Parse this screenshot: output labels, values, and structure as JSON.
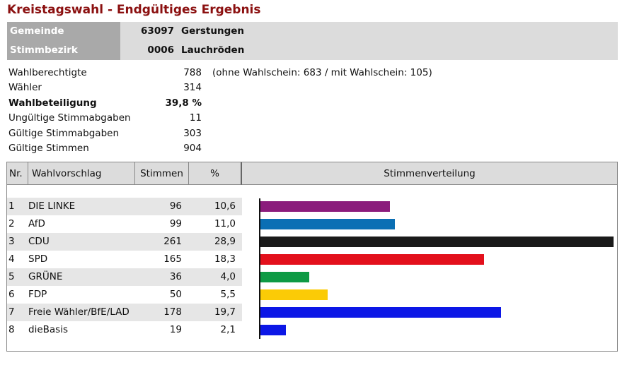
{
  "title": "Kreistagswahl - Endgültiges Ergebnis",
  "header": {
    "gemeinde_label": "Gemeinde",
    "gemeinde_code": "63097",
    "gemeinde_name": "Gerstungen",
    "bezirk_label": "Stimmbezirk",
    "bezirk_code": "0006",
    "bezirk_name": "Lauchröden"
  },
  "stats": [
    {
      "label": "Wahlberechtigte",
      "value": "788",
      "note": "(ohne Wahlschein: 683 / mit Wahlschein: 105)"
    },
    {
      "label": "Wähler",
      "value": "314",
      "note": ""
    },
    {
      "label": "Wahlbeteiligung",
      "value": "39,8 %",
      "note": ""
    },
    {
      "label": "Ungültige Stimmabgaben",
      "value": "11",
      "note": ""
    },
    {
      "label": "Gültige Stimmabgaben",
      "value": "303",
      "note": ""
    },
    {
      "label": "Gültige Stimmen",
      "value": "904",
      "note": ""
    }
  ],
  "table": {
    "headers": {
      "nr": "Nr.",
      "wahlvorschlag": "Wahlvorschlag",
      "stimmen": "Stimmen",
      "pct": "%",
      "verteilung": "Stimmenverteilung"
    },
    "rows": [
      {
        "nr": "1",
        "name": "DIE LINKE",
        "stimmen": "96",
        "pct": "10,6",
        "share": 10.6,
        "color": "#8b1c7c"
      },
      {
        "nr": "2",
        "name": "AfD",
        "stimmen": "99",
        "pct": "11,0",
        "share": 11.0,
        "color": "#0b6fb4"
      },
      {
        "nr": "3",
        "name": "CDU",
        "stimmen": "261",
        "pct": "28,9",
        "share": 28.9,
        "color": "#1a1a1a"
      },
      {
        "nr": "4",
        "name": "SPD",
        "stimmen": "165",
        "pct": "18,3",
        "share": 18.3,
        "color": "#e3101c"
      },
      {
        "nr": "5",
        "name": "GRÜNE",
        "stimmen": "36",
        "pct": "4,0",
        "share": 4.0,
        "color": "#0e9a44"
      },
      {
        "nr": "6",
        "name": "FDP",
        "stimmen": "50",
        "pct": "5,5",
        "share": 5.5,
        "color": "#fbcb06"
      },
      {
        "nr": "7",
        "name": "Freie Wähler/BfE/LAD",
        "stimmen": "178",
        "pct": "19,7",
        "share": 19.7,
        "color": "#0c17e6"
      },
      {
        "nr": "8",
        "name": "dieBasis",
        "stimmen": "19",
        "pct": "2,1",
        "share": 2.1,
        "color": "#0c17e6"
      }
    ]
  }
}
